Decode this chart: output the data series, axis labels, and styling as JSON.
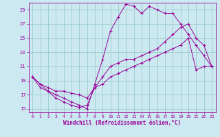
{
  "xlabel": "Windchill (Refroidissement éolien,°C)",
  "bg_color": "#cce8f0",
  "line_color": "#990099",
  "grid_color": "#99cccc",
  "xlim": [
    -0.5,
    23.5
  ],
  "ylim": [
    14.5,
    30.0
  ],
  "yticks": [
    15,
    17,
    19,
    21,
    23,
    25,
    27,
    29
  ],
  "xticks": [
    0,
    1,
    2,
    3,
    4,
    5,
    6,
    7,
    8,
    9,
    10,
    11,
    12,
    13,
    14,
    15,
    16,
    17,
    18,
    19,
    20,
    21,
    22,
    23
  ],
  "series1_x": [
    0,
    1,
    2,
    3,
    4,
    5,
    6,
    7,
    8,
    9,
    10,
    11,
    12,
    13,
    14,
    15,
    16,
    17,
    18,
    19,
    20,
    21,
    22,
    23
  ],
  "series1_y": [
    19.5,
    18.0,
    17.5,
    17.0,
    16.5,
    16.0,
    15.5,
    15.0,
    18.5,
    22.0,
    26.0,
    28.0,
    29.8,
    29.5,
    28.5,
    29.5,
    29.0,
    28.5,
    28.5,
    27.0,
    25.5,
    24.0,
    22.5,
    21.0
  ],
  "series2_x": [
    0,
    1,
    2,
    3,
    4,
    5,
    6,
    7,
    8,
    9,
    10,
    11,
    12,
    13,
    14,
    15,
    16,
    17,
    18,
    19,
    20,
    21,
    22,
    23
  ],
  "series2_y": [
    19.5,
    18.5,
    18.0,
    17.5,
    17.5,
    17.2,
    17.0,
    16.5,
    18.0,
    19.5,
    21.0,
    21.5,
    22.0,
    22.0,
    22.5,
    23.0,
    23.5,
    24.5,
    25.5,
    26.5,
    27.0,
    25.0,
    24.0,
    21.0
  ],
  "series3_x": [
    0,
    1,
    2,
    3,
    4,
    5,
    6,
    7,
    8,
    9,
    10,
    11,
    12,
    13,
    14,
    15,
    16,
    17,
    18,
    19,
    20,
    21,
    22,
    23
  ],
  "series3_y": [
    19.5,
    18.5,
    17.5,
    16.5,
    16.0,
    15.5,
    15.2,
    15.5,
    18.0,
    18.5,
    19.5,
    20.0,
    20.5,
    21.0,
    21.5,
    22.0,
    22.5,
    23.0,
    23.5,
    24.0,
    25.0,
    20.5,
    21.0,
    21.0
  ]
}
